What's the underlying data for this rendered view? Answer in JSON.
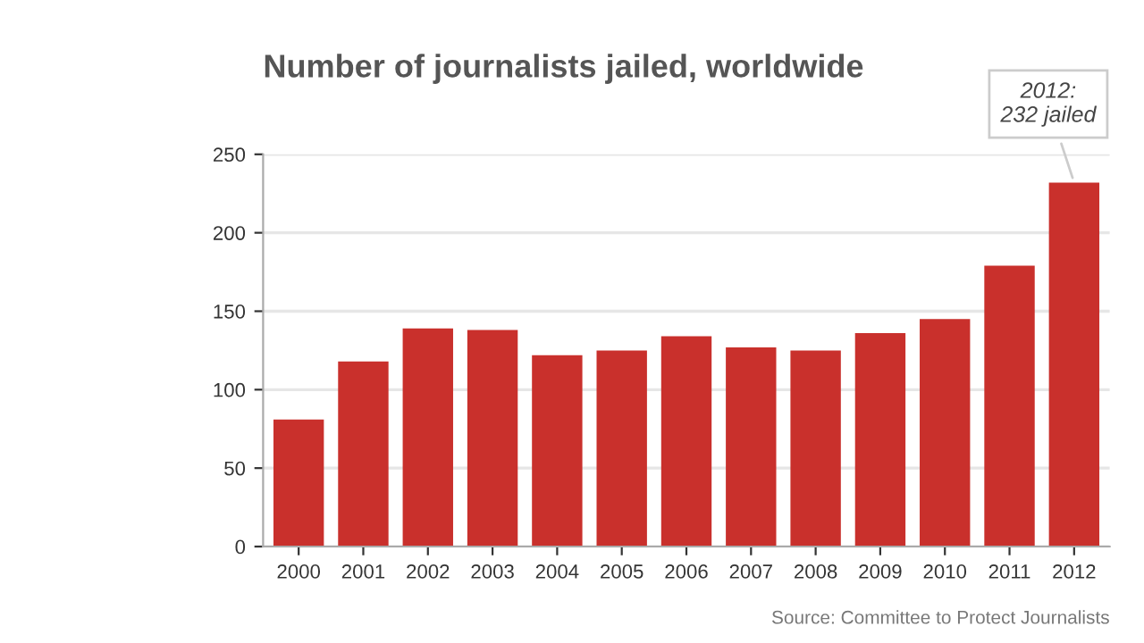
{
  "chart_data": {
    "type": "bar",
    "title": "Number of journalists jailed, worldwide",
    "categories": [
      "2000",
      "2001",
      "2002",
      "2003",
      "2004",
      "2005",
      "2006",
      "2007",
      "2008",
      "2009",
      "2010",
      "2011",
      "2012"
    ],
    "values": [
      81,
      118,
      139,
      138,
      122,
      125,
      134,
      127,
      125,
      136,
      145,
      179,
      232
    ],
    "color": "#c9302c",
    "ylim": [
      0,
      250
    ],
    "yticks": [
      0,
      50,
      100,
      150,
      200,
      250
    ],
    "grid": "y",
    "annotations": [
      {
        "text": "2012:\n232 jailed",
        "x": "2012",
        "y": 232
      },
      "Source: Committee to Protect Journalists"
    ]
  }
}
